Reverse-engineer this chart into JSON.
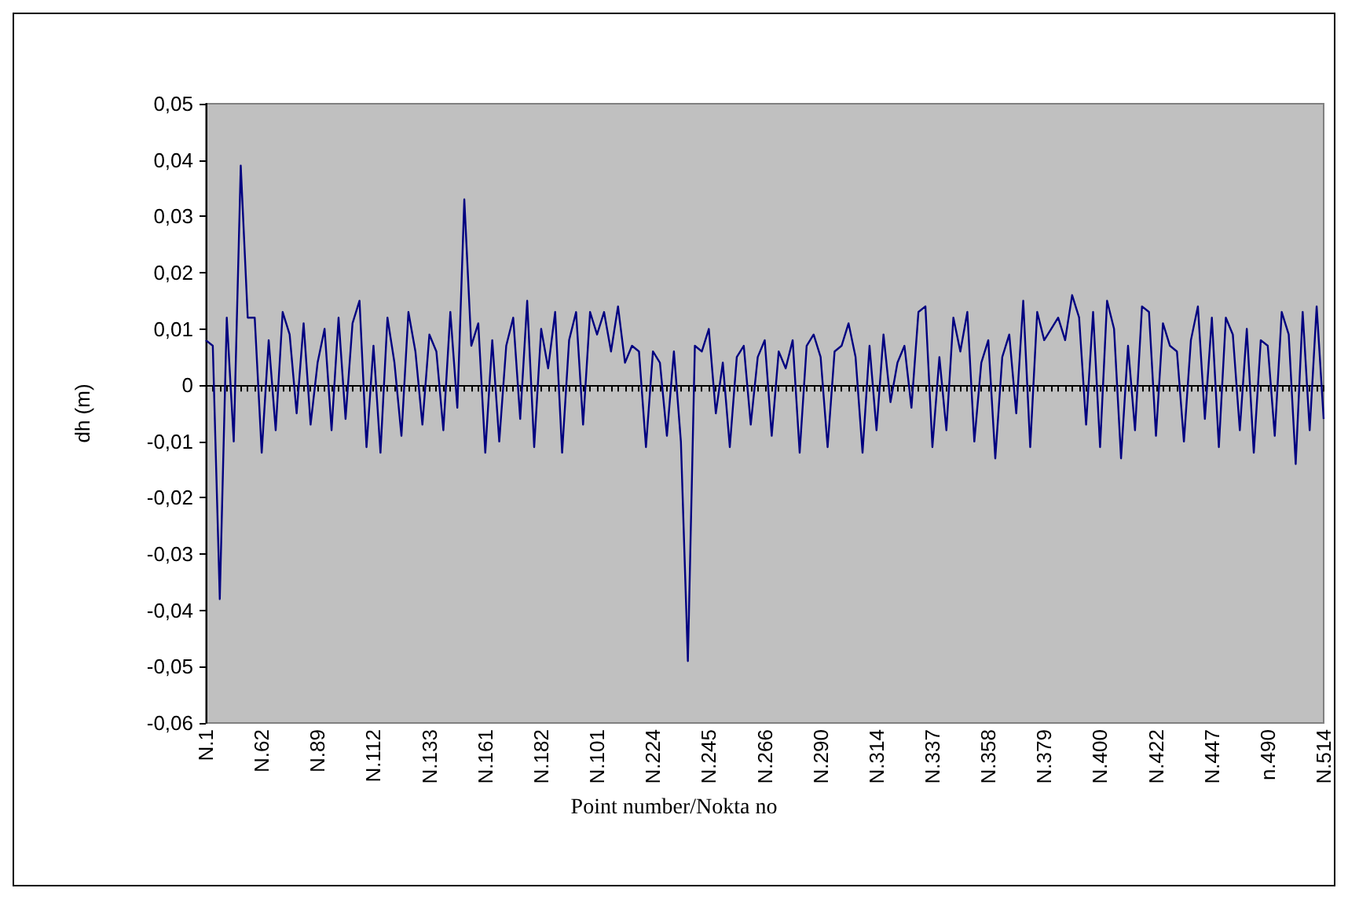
{
  "chart_data": {
    "type": "line",
    "xlabel": "Point number/Nokta no",
    "ylabel": "dh (m)",
    "categories": [
      "N.1",
      null,
      null,
      null,
      null,
      null,
      null,
      null,
      "N.62",
      null,
      null,
      null,
      null,
      null,
      null,
      null,
      "N.89",
      null,
      null,
      null,
      null,
      null,
      null,
      null,
      "N.112",
      null,
      null,
      null,
      null,
      null,
      null,
      null,
      "N.133",
      null,
      null,
      null,
      null,
      null,
      null,
      null,
      "N.161",
      null,
      null,
      null,
      null,
      null,
      null,
      null,
      "N.182",
      null,
      null,
      null,
      null,
      null,
      null,
      null,
      "N.101",
      null,
      null,
      null,
      null,
      null,
      null,
      null,
      "N.224",
      null,
      null,
      null,
      null,
      null,
      null,
      null,
      "N.245",
      null,
      null,
      null,
      null,
      null,
      null,
      null,
      "N.266",
      null,
      null,
      null,
      null,
      null,
      null,
      null,
      "N.290",
      null,
      null,
      null,
      null,
      null,
      null,
      null,
      "N.314",
      null,
      null,
      null,
      null,
      null,
      null,
      null,
      "N.337",
      null,
      null,
      null,
      null,
      null,
      null,
      null,
      "N.358",
      null,
      null,
      null,
      null,
      null,
      null,
      null,
      "N.379",
      null,
      null,
      null,
      null,
      null,
      null,
      null,
      "N.400",
      null,
      null,
      null,
      null,
      null,
      null,
      null,
      "N.422",
      null,
      null,
      null,
      null,
      null,
      null,
      null,
      "N.447",
      null,
      null,
      null,
      null,
      null,
      null,
      null,
      "n.490",
      null,
      null,
      null,
      null,
      null,
      null,
      null,
      "N.514"
    ],
    "series": [
      {
        "color": "#000080",
        "values": [
          0.008,
          0.007,
          -0.038,
          0.012,
          -0.01,
          0.039,
          0.012,
          0.012,
          -0.012,
          0.008,
          -0.008,
          0.013,
          0.009,
          -0.005,
          0.011,
          -0.007,
          0.004,
          0.01,
          -0.008,
          0.012,
          -0.006,
          0.011,
          0.015,
          -0.011,
          0.007,
          -0.012,
          0.012,
          0.004,
          -0.009,
          0.013,
          0.006,
          -0.007,
          0.009,
          0.006,
          -0.008,
          0.013,
          -0.004,
          0.033,
          0.007,
          0.011,
          -0.012,
          0.008,
          -0.01,
          0.007,
          0.012,
          -0.006,
          0.015,
          -0.011,
          0.01,
          0.003,
          0.013,
          -0.012,
          0.008,
          0.013,
          -0.007,
          0.013,
          0.009,
          0.013,
          0.006,
          0.014,
          0.004,
          0.007,
          0.006,
          -0.011,
          0.006,
          0.004,
          -0.009,
          0.006,
          -0.01,
          -0.049,
          0.007,
          0.006,
          0.01,
          -0.005,
          0.004,
          -0.011,
          0.005,
          0.007,
          -0.007,
          0.005,
          0.008,
          -0.009,
          0.006,
          0.003,
          0.008,
          -0.012,
          0.007,
          0.009,
          0.005,
          -0.011,
          0.006,
          0.007,
          0.011,
          0.005,
          -0.012,
          0.007,
          -0.008,
          0.009,
          -0.003,
          0.004,
          0.007,
          -0.004,
          0.013,
          0.014,
          -0.011,
          0.005,
          -0.008,
          0.012,
          0.006,
          0.013,
          -0.01,
          0.004,
          0.008,
          -0.013,
          0.005,
          0.009,
          -0.005,
          0.015,
          -0.011,
          0.013,
          0.008,
          0.01,
          0.012,
          0.008,
          0.016,
          0.012,
          -0.007,
          0.013,
          -0.011,
          0.015,
          0.01,
          -0.013,
          0.007,
          -0.008,
          0.014,
          0.013,
          -0.009,
          0.011,
          0.007,
          0.006,
          -0.01,
          0.008,
          0.014,
          -0.006,
          0.012,
          -0.011,
          0.012,
          0.009,
          -0.008,
          0.01,
          -0.012,
          0.008,
          0.007,
          -0.009,
          0.013,
          0.009,
          -0.014,
          0.013,
          -0.008,
          0.014,
          -0.006
        ]
      }
    ],
    "ylim": [
      -0.06,
      0.05
    ],
    "yticks": [
      {
        "value": -0.06,
        "label": "-0,06"
      },
      {
        "value": -0.05,
        "label": "-0,05"
      },
      {
        "value": -0.04,
        "label": "-0,04"
      },
      {
        "value": -0.03,
        "label": "-0,03"
      },
      {
        "value": -0.02,
        "label": "-0,02"
      },
      {
        "value": -0.01,
        "label": "-0,01"
      },
      {
        "value": 0,
        "label": "0"
      },
      {
        "value": 0.01,
        "label": "0,01"
      },
      {
        "value": 0.02,
        "label": "0,02"
      },
      {
        "value": 0.03,
        "label": "0,03"
      },
      {
        "value": 0.04,
        "label": "0,04"
      },
      {
        "value": 0.05,
        "label": "0,05"
      }
    ]
  }
}
